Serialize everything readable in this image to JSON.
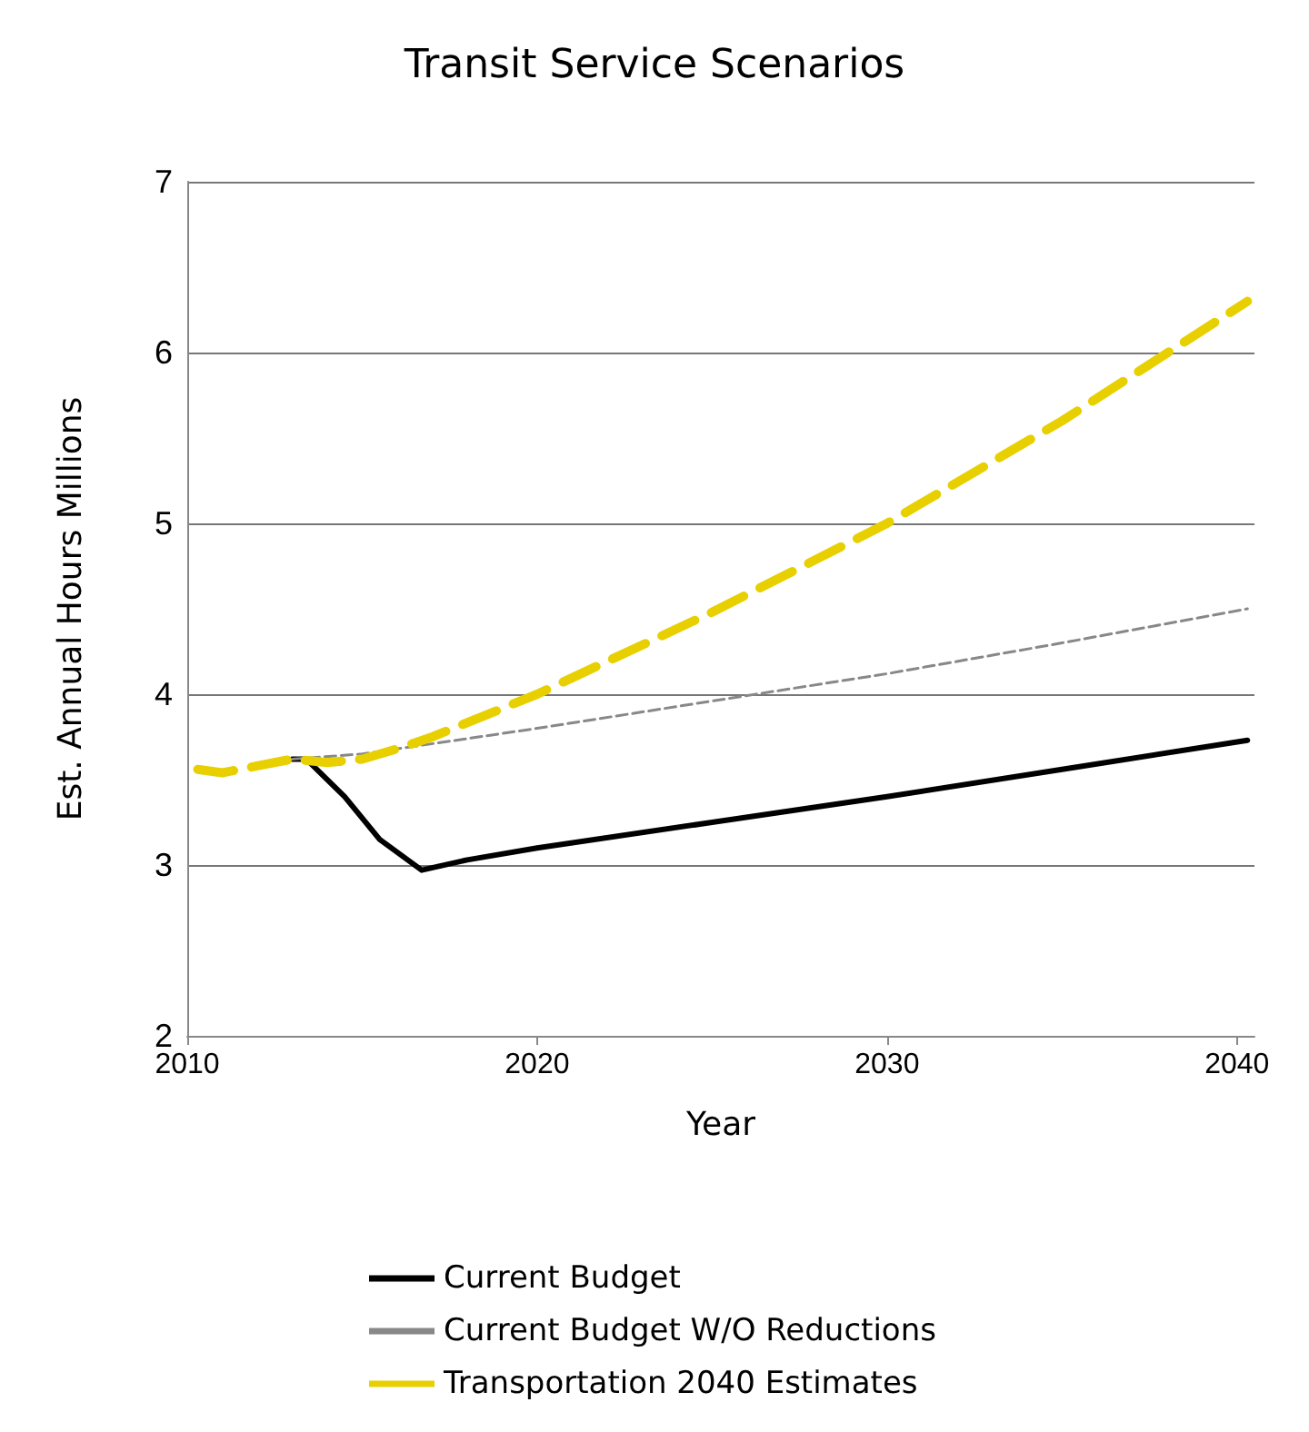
{
  "chart_data": {
    "type": "line",
    "title": "Transit Service Scenarios",
    "xlabel": "Year",
    "ylabel": "Est. Annual Hours Millions",
    "xlim": [
      2010,
      2040.5
    ],
    "xticks": [
      2010,
      2020,
      2030,
      2040
    ],
    "ylim": [
      2,
      7
    ],
    "yticks": [
      2,
      3,
      4,
      5,
      6,
      7
    ],
    "grid": "y",
    "legend": "bottom",
    "marker": "none",
    "series": [
      {
        "name": "Current Budget",
        "color": "#000000",
        "line_style": "solid",
        "x": [
          2013,
          2013.4,
          2014.5,
          2015.5,
          2016.7,
          2018,
          2020,
          2025,
          2030,
          2035,
          2040.3
        ],
        "values": [
          3.62,
          3.62,
          3.4,
          3.15,
          2.97,
          3.03,
          3.1,
          3.25,
          3.4,
          3.56,
          3.73
        ]
      },
      {
        "name": "Current Budget W/O Reductions",
        "color": "#888888",
        "line_style": "dashed",
        "x": [
          2013,
          2015,
          2020,
          2025,
          2030,
          2035,
          2040.3
        ],
        "values": [
          3.62,
          3.65,
          3.8,
          3.96,
          4.12,
          4.3,
          4.5
        ]
      },
      {
        "name": "Transportation 2040 Estimates",
        "color": "#e8d000",
        "line_style": "dashed",
        "x": [
          2010.3,
          2011,
          2012,
          2013,
          2014,
          2015,
          2016,
          2017,
          2020,
          2025,
          2030,
          2035,
          2040.3
        ],
        "values": [
          3.56,
          3.54,
          3.58,
          3.62,
          3.6,
          3.62,
          3.68,
          3.75,
          4.0,
          4.48,
          5.0,
          5.6,
          6.3
        ]
      }
    ]
  }
}
